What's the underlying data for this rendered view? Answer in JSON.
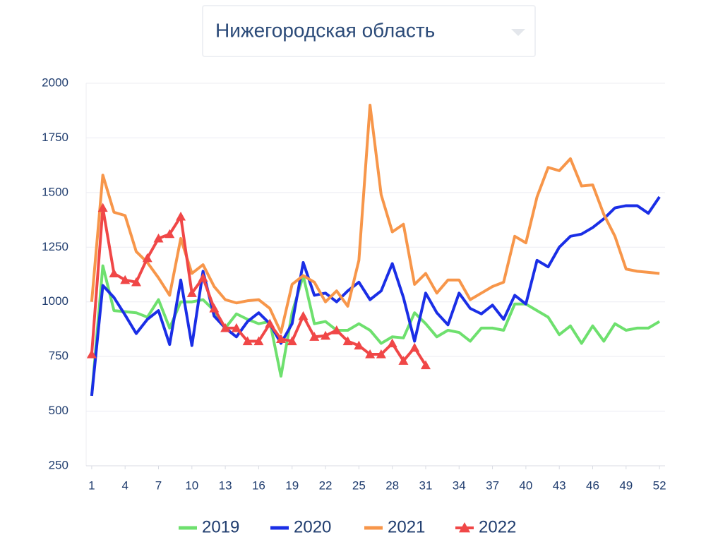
{
  "chart_data": {
    "type": "line",
    "title": "Нижегородская область",
    "x": [
      1,
      2,
      3,
      4,
      5,
      6,
      7,
      8,
      9,
      10,
      11,
      12,
      13,
      14,
      15,
      16,
      17,
      18,
      19,
      20,
      21,
      22,
      23,
      24,
      25,
      26,
      27,
      28,
      29,
      30,
      31,
      32,
      33,
      34,
      35,
      36,
      37,
      38,
      39,
      40,
      41,
      42,
      43,
      44,
      45,
      46,
      47,
      48,
      49,
      50,
      51,
      52
    ],
    "xlim": [
      0.5,
      52.5
    ],
    "xticks": [
      1,
      4,
      7,
      10,
      13,
      16,
      19,
      22,
      25,
      28,
      31,
      34,
      37,
      40,
      43,
      46,
      49,
      52
    ],
    "ylim": [
      250,
      2000
    ],
    "yticks": [
      250,
      500,
      750,
      1000,
      1250,
      1500,
      1750,
      2000
    ],
    "grid": true,
    "legend": "bottom",
    "series": [
      {
        "name": "2019",
        "color": "#6ee06e",
        "marker": "none",
        "values": [
          570,
          1165,
          960,
          955,
          950,
          930,
          1010,
          880,
          1000,
          1000,
          1010,
          960,
          880,
          945,
          920,
          900,
          910,
          660,
          950,
          1120,
          900,
          910,
          870,
          870,
          900,
          870,
          810,
          840,
          835,
          950,
          900,
          840,
          870,
          860,
          820,
          880,
          880,
          870,
          990,
          990,
          960,
          930,
          850,
          890,
          810,
          890,
          820,
          900,
          870,
          880,
          880,
          910
        ]
      },
      {
        "name": "2020",
        "color": "#1a2ee6",
        "marker": "none",
        "values": [
          570,
          1075,
          1020,
          940,
          855,
          920,
          960,
          805,
          1100,
          800,
          1140,
          935,
          880,
          840,
          910,
          950,
          900,
          810,
          900,
          1180,
          1030,
          1040,
          1000,
          1050,
          1090,
          1010,
          1050,
          1175,
          1020,
          820,
          1040,
          950,
          895,
          1040,
          970,
          945,
          985,
          920,
          1030,
          990,
          1190,
          1160,
          1250,
          1300,
          1310,
          1340,
          1380,
          1430,
          1440,
          1440,
          1405,
          1480
        ]
      },
      {
        "name": "2021",
        "color": "#f7964a",
        "marker": "none",
        "values": [
          1000,
          1580,
          1410,
          1395,
          1230,
          1180,
          1110,
          1030,
          1290,
          1130,
          1170,
          1070,
          1010,
          995,
          1005,
          1010,
          970,
          860,
          1080,
          1120,
          1090,
          1000,
          1050,
          980,
          1190,
          1900,
          1490,
          1320,
          1355,
          1080,
          1130,
          1040,
          1100,
          1100,
          1010,
          1040,
          1070,
          1090,
          1300,
          1270,
          1480,
          1615,
          1600,
          1655,
          1530,
          1535,
          1400,
          1300,
          1150,
          1140,
          1135,
          1130
        ]
      },
      {
        "name": "2022",
        "color": "#f04747",
        "marker": "triangle",
        "values": [
          760,
          1430,
          1130,
          1100,
          1090,
          1200,
          1290,
          1310,
          1390,
          1040,
          1110,
          970,
          880,
          880,
          820,
          820,
          900,
          830,
          820,
          935,
          840,
          845,
          870,
          820,
          800,
          760,
          760,
          810,
          730,
          790,
          710,
          null,
          null,
          null,
          null,
          null,
          null,
          null,
          null,
          null,
          null,
          null,
          null,
          null,
          null,
          null,
          null,
          null,
          null,
          null,
          null,
          null
        ]
      }
    ]
  }
}
